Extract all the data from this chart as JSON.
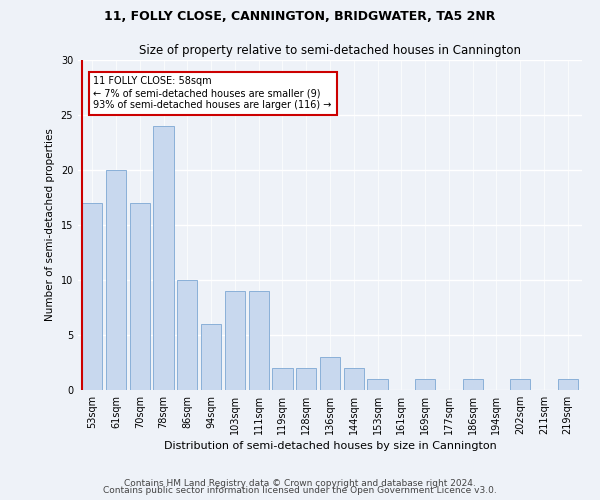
{
  "title1": "11, FOLLY CLOSE, CANNINGTON, BRIDGWATER, TA5 2NR",
  "title2": "Size of property relative to semi-detached houses in Cannington",
  "xlabel": "Distribution of semi-detached houses by size in Cannington",
  "ylabel": "Number of semi-detached properties",
  "categories": [
    "53sqm",
    "61sqm",
    "70sqm",
    "78sqm",
    "86sqm",
    "94sqm",
    "103sqm",
    "111sqm",
    "119sqm",
    "128sqm",
    "136sqm",
    "144sqm",
    "153sqm",
    "161sqm",
    "169sqm",
    "177sqm",
    "186sqm",
    "194sqm",
    "202sqm",
    "211sqm",
    "219sqm"
  ],
  "values": [
    17,
    20,
    17,
    24,
    10,
    6,
    9,
    9,
    2,
    2,
    3,
    2,
    1,
    0,
    1,
    0,
    1,
    0,
    1,
    0,
    1
  ],
  "bar_color": "#c8d8ee",
  "bar_edge_color": "#8ab0d8",
  "highlight_line_color": "#cc0000",
  "annotation_text": "11 FOLLY CLOSE: 58sqm\n← 7% of semi-detached houses are smaller (9)\n93% of semi-detached houses are larger (116) →",
  "annotation_box_color": "#ffffff",
  "annotation_box_edge": "#cc0000",
  "ylim": [
    0,
    30
  ],
  "yticks": [
    0,
    5,
    10,
    15,
    20,
    25,
    30
  ],
  "footer1": "Contains HM Land Registry data © Crown copyright and database right 2024.",
  "footer2": "Contains public sector information licensed under the Open Government Licence v3.0.",
  "bg_color": "#eef2f8",
  "plot_bg_color": "#eef2f8",
  "grid_color": "#ffffff",
  "title1_fontsize": 9,
  "title2_fontsize": 8.5,
  "xlabel_fontsize": 8,
  "ylabel_fontsize": 7.5,
  "tick_fontsize": 7,
  "annotation_fontsize": 7,
  "footer_fontsize": 6.5
}
